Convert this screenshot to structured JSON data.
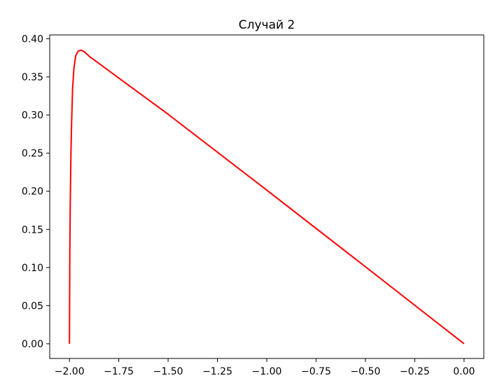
{
  "chart_data": {
    "type": "line",
    "title": "Случай 2",
    "xlabel": "",
    "ylabel": "",
    "xlim": [
      -2.1,
      0.1
    ],
    "ylim": [
      -0.0193,
      0.405
    ],
    "grid": false,
    "x_ticks": [
      -2.0,
      -1.75,
      -1.5,
      -1.25,
      -1.0,
      -0.75,
      -0.5,
      -0.25,
      0.0
    ],
    "x_tick_labels": [
      "−2.00",
      "−1.75",
      "−1.50",
      "−1.25",
      "−1.00",
      "−0.75",
      "−0.50",
      "−0.25",
      "0.00"
    ],
    "y_ticks": [
      0.0,
      0.05,
      0.1,
      0.15,
      0.2,
      0.25,
      0.3,
      0.35,
      0.4
    ],
    "y_tick_labels": [
      "0.00",
      "0.05",
      "0.10",
      "0.15",
      "0.20",
      "0.25",
      "0.30",
      "0.35",
      "0.40"
    ],
    "series": [
      {
        "color": "#ff0000",
        "x": [
          -2.0,
          -1.999,
          -1.998,
          -1.996,
          -1.993,
          -1.989,
          -1.984,
          -1.977,
          -1.968,
          -1.955,
          -1.94,
          -1.925,
          -1.9,
          -1.5,
          -1.0,
          -0.5,
          0.0
        ],
        "y": [
          0.0,
          0.06,
          0.12,
          0.18,
          0.24,
          0.29,
          0.335,
          0.362,
          0.378,
          0.384,
          0.385,
          0.383,
          0.377,
          0.301,
          0.2015,
          0.101,
          0.0
        ]
      }
    ]
  }
}
